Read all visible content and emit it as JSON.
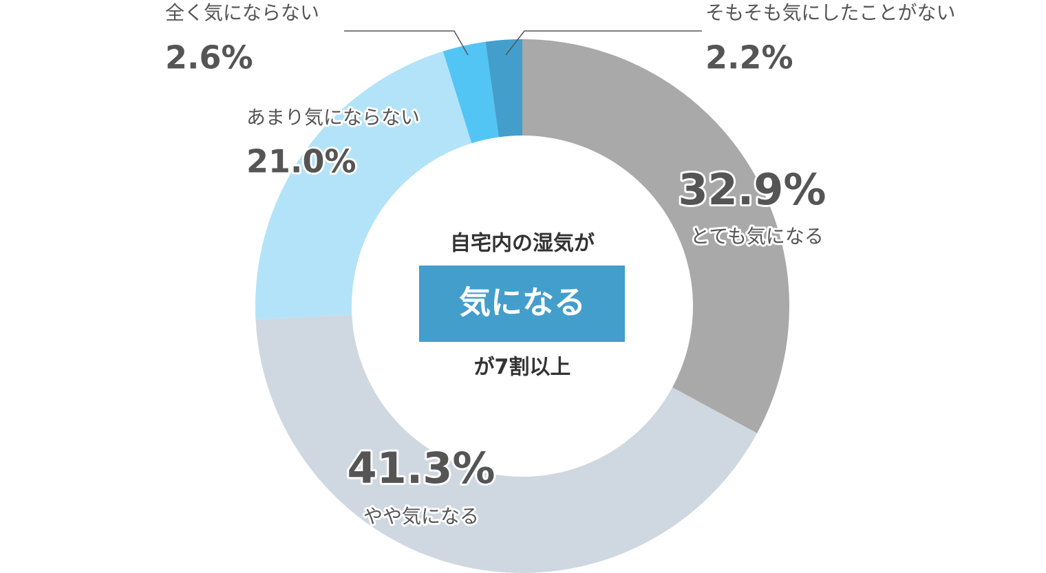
{
  "chart_data": {
    "type": "donut",
    "categories": [
      "とても気になる",
      "やや気になる",
      "あまり気にならない",
      "全く気にならない",
      "そもそも気にしたことがない"
    ],
    "values": [
      32.9,
      41.3,
      21.0,
      2.6,
      2.2
    ],
    "value_labels": [
      "32.9%",
      "41.3%",
      "21.0%",
      "2.6%",
      "2.2%"
    ],
    "colors": [
      "#a9a9a9",
      "#cfd8e0",
      "#b3e3f8",
      "#52c5f5",
      "#439ecb"
    ],
    "annotations": [
      "自宅内の湿気が",
      "気になる",
      "が7割以上"
    ]
  }
}
